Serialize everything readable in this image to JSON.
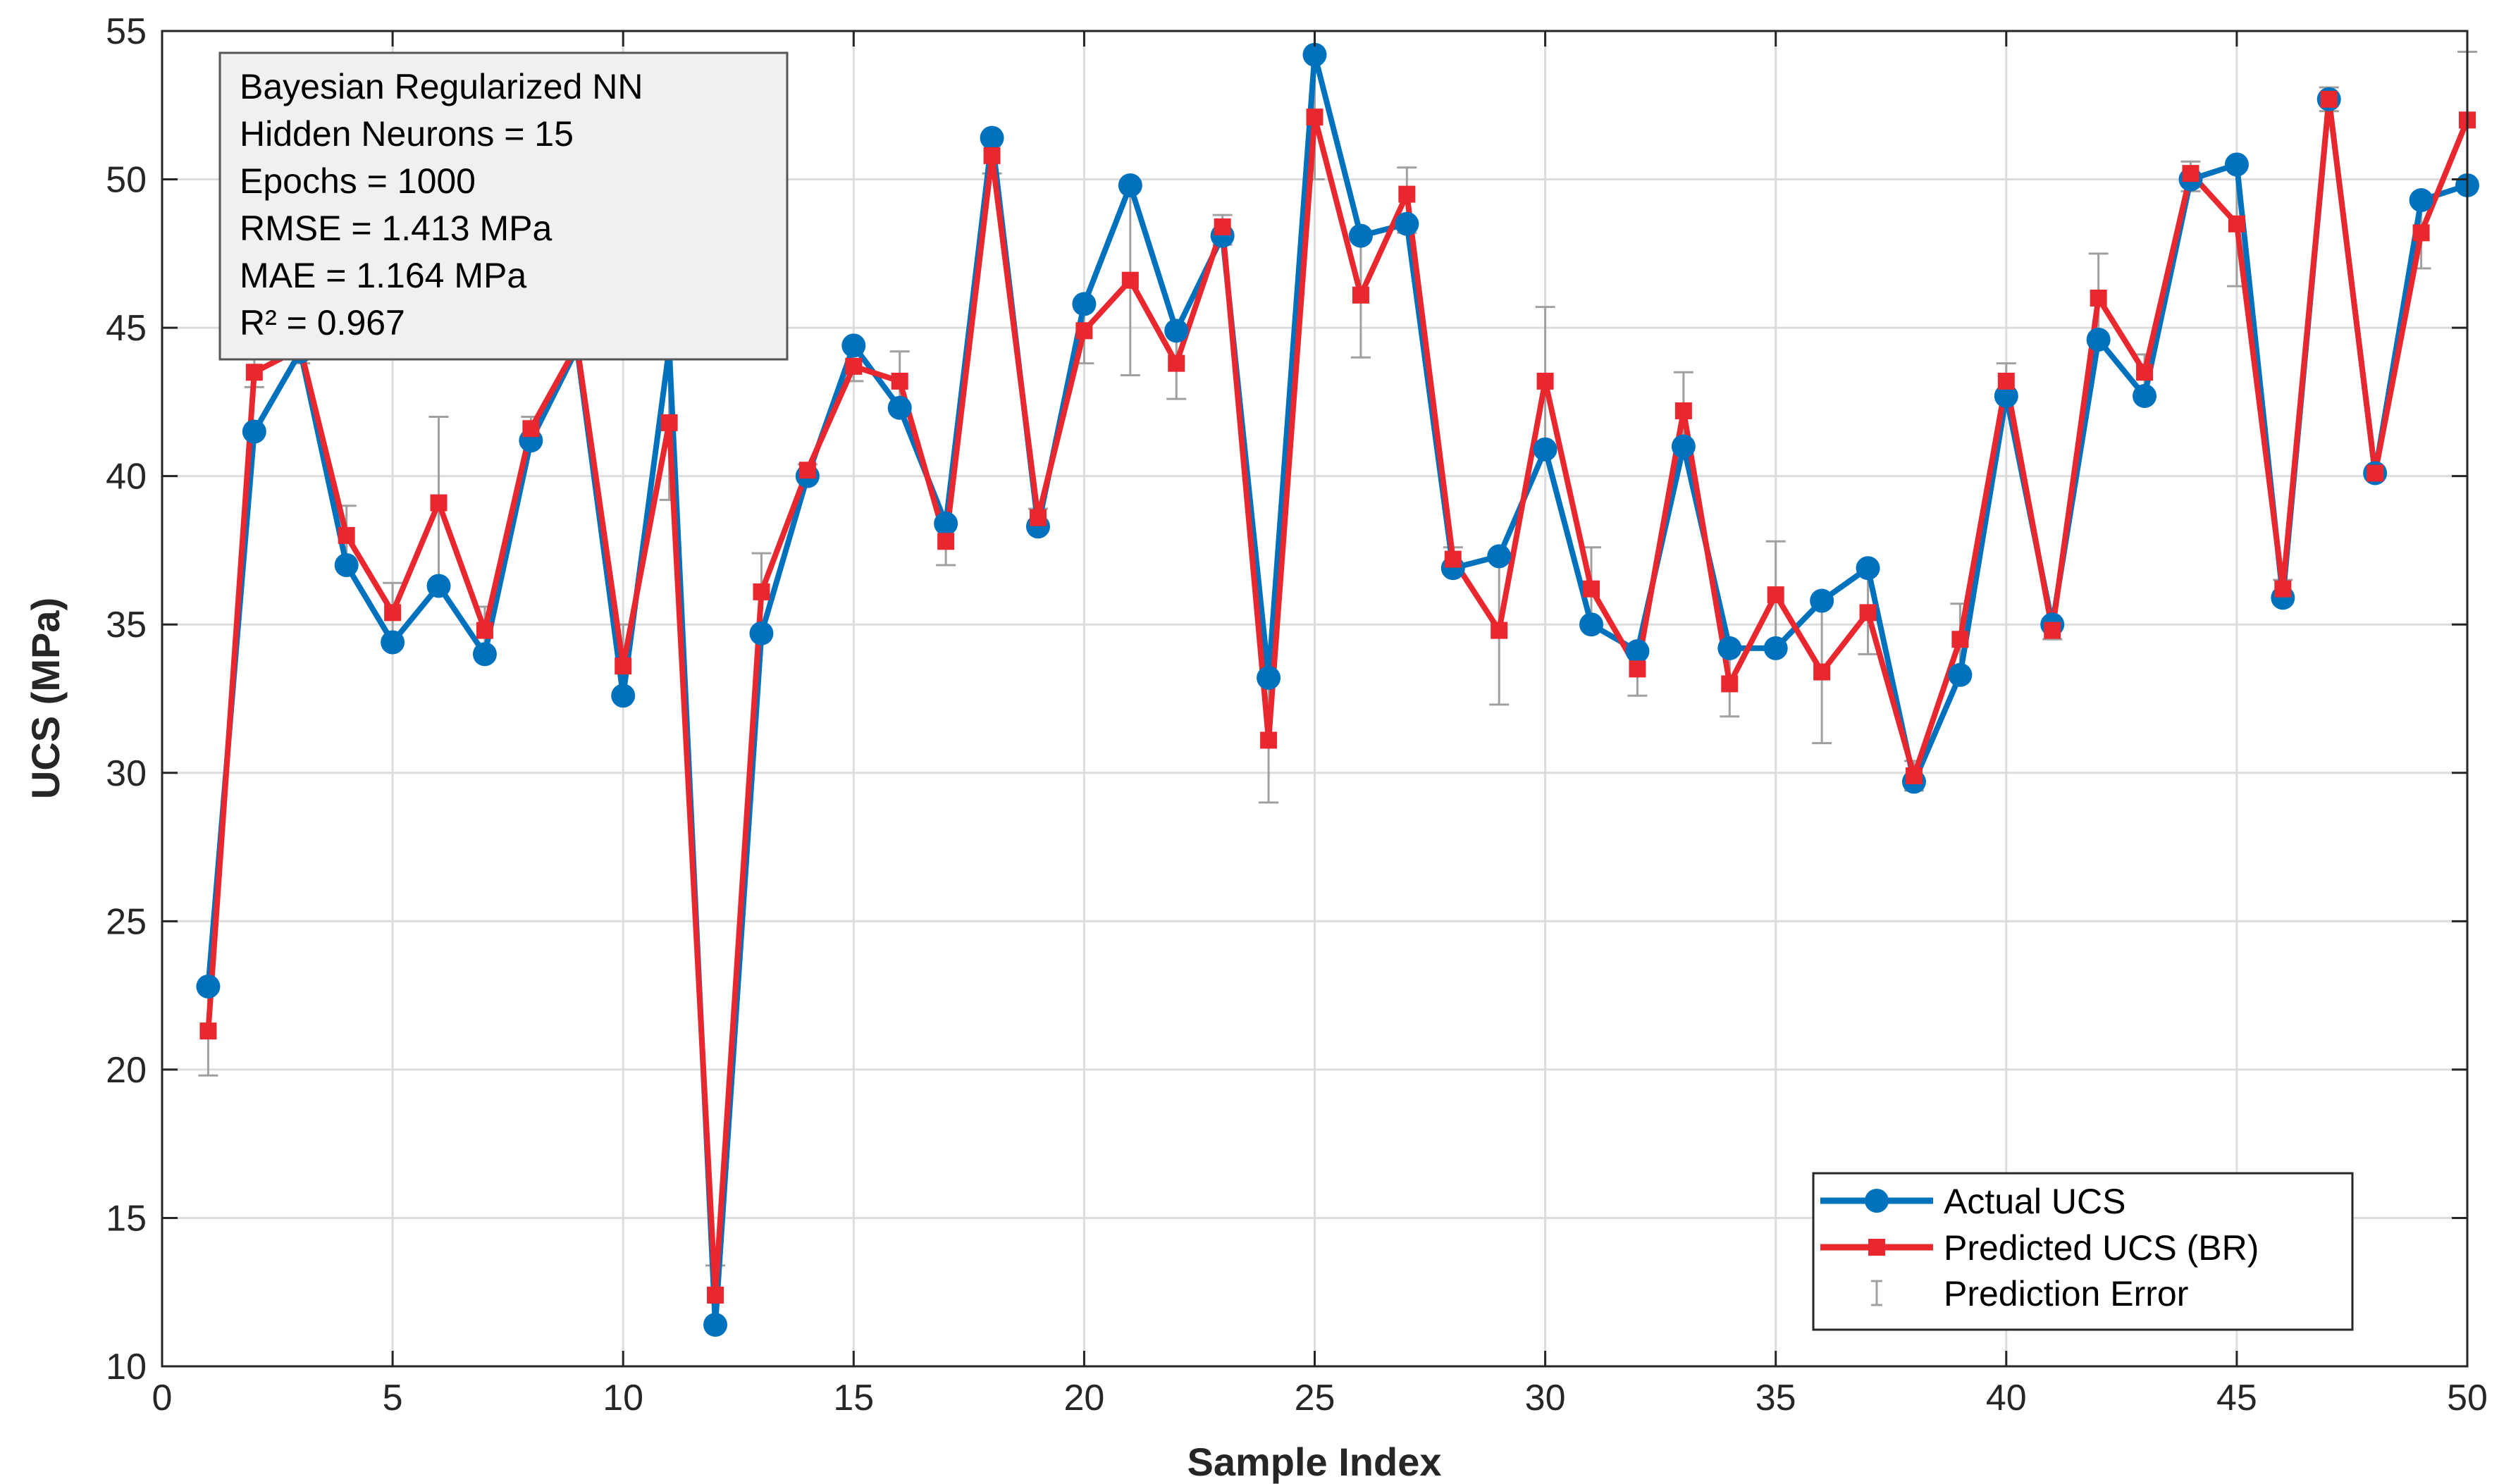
{
  "chart_data": {
    "type": "line",
    "title": "",
    "xlabel": "Sample Index",
    "ylabel": "UCS (MPa)",
    "xlim": [
      0,
      50
    ],
    "ylim": [
      10,
      55
    ],
    "xticks": [
      0,
      5,
      10,
      15,
      20,
      25,
      30,
      35,
      40,
      45,
      50
    ],
    "yticks": [
      10,
      15,
      20,
      25,
      30,
      35,
      40,
      45,
      50,
      55
    ],
    "grid": true,
    "legend_position": "bottom-right",
    "x": [
      1,
      2,
      3,
      4,
      5,
      6,
      7,
      8,
      9,
      10,
      11,
      12,
      13,
      14,
      15,
      16,
      17,
      18,
      19,
      20,
      21,
      22,
      23,
      24,
      25,
      26,
      27,
      28,
      29,
      30,
      31,
      32,
      33,
      34,
      35,
      36,
      37,
      38,
      39,
      40,
      41,
      42,
      43,
      44,
      45,
      46,
      47,
      48,
      49,
      50
    ],
    "series": [
      {
        "name": "Actual UCS",
        "color": "#0072bd",
        "marker": "circle",
        "values": [
          22.8,
          41.5,
          44.2,
          37.0,
          34.4,
          36.3,
          34.0,
          41.2,
          44.3,
          32.6,
          44.3,
          11.4,
          34.7,
          40.0,
          44.4,
          42.3,
          38.4,
          51.4,
          38.3,
          45.8,
          49.8,
          44.9,
          48.1,
          33.2,
          54.2,
          48.1,
          48.5,
          36.9,
          37.3,
          40.9,
          35.0,
          34.1,
          41.0,
          34.2,
          34.2,
          35.8,
          36.9,
          29.7,
          33.3,
          42.7,
          35.0,
          44.6,
          42.7,
          50.0,
          50.5,
          35.9,
          52.7,
          40.1,
          49.3,
          49.8
        ]
      },
      {
        "name": "Predicted UCS (BR)",
        "color": "#e8282e",
        "marker": "square",
        "values": [
          21.3,
          43.5,
          44.3,
          38.0,
          35.4,
          39.1,
          34.8,
          41.6,
          44.4,
          33.6,
          41.8,
          12.4,
          36.1,
          40.2,
          43.7,
          43.2,
          37.8,
          50.8,
          38.6,
          44.9,
          46.6,
          43.8,
          48.4,
          31.1,
          52.1,
          46.1,
          49.5,
          37.2,
          34.8,
          43.2,
          36.2,
          33.5,
          42.2,
          33.0,
          36.0,
          33.4,
          35.4,
          29.9,
          34.5,
          43.2,
          34.8,
          46.0,
          43.5,
          50.2,
          48.5,
          36.2,
          52.7,
          40.1,
          48.2,
          52.0
        ]
      }
    ],
    "error_bars": {
      "name": "Prediction Error",
      "color": "#a0a0a0",
      "lower": [
        19.8,
        43.0,
        43.8,
        37.0,
        34.4,
        36.3,
        34.2,
        41.2,
        44.3,
        32.6,
        39.2,
        11.4,
        34.7,
        40.0,
        43.2,
        42.3,
        37.0,
        50.2,
        38.3,
        43.8,
        43.4,
        42.6,
        47.8,
        29.0,
        50.0,
        44.0,
        48.2,
        36.9,
        32.3,
        40.9,
        35.0,
        32.6,
        41.0,
        31.9,
        34.2,
        31.0,
        34.0,
        29.4,
        33.3,
        42.7,
        34.5,
        44.6,
        42.7,
        49.6,
        46.4,
        35.9,
        52.3,
        39.9,
        47.0,
        49.8
      ],
      "upper": [
        22.8,
        44.3,
        44.6,
        39.0,
        36.4,
        42.0,
        35.6,
        42.0,
        44.6,
        35.0,
        44.3,
        13.4,
        37.4,
        40.4,
        44.4,
        44.2,
        38.4,
        51.4,
        38.9,
        45.8,
        49.8,
        44.9,
        48.8,
        33.2,
        54.2,
        48.1,
        50.4,
        37.6,
        37.3,
        45.7,
        37.6,
        34.1,
        43.5,
        34.2,
        37.8,
        35.8,
        36.9,
        30.4,
        35.7,
        43.8,
        35.0,
        47.5,
        44.1,
        50.6,
        50.5,
        36.5,
        53.1,
        40.3,
        49.3,
        54.3
      ]
    },
    "annotation": {
      "lines": [
        "Bayesian Regularized NN",
        "Hidden Neurons = 15",
        "Epochs = 1000",
        "RMSE = 1.413 MPa",
        "MAE = 1.164 MPa",
        "R² = 0.967"
      ],
      "position": "top-left"
    }
  }
}
